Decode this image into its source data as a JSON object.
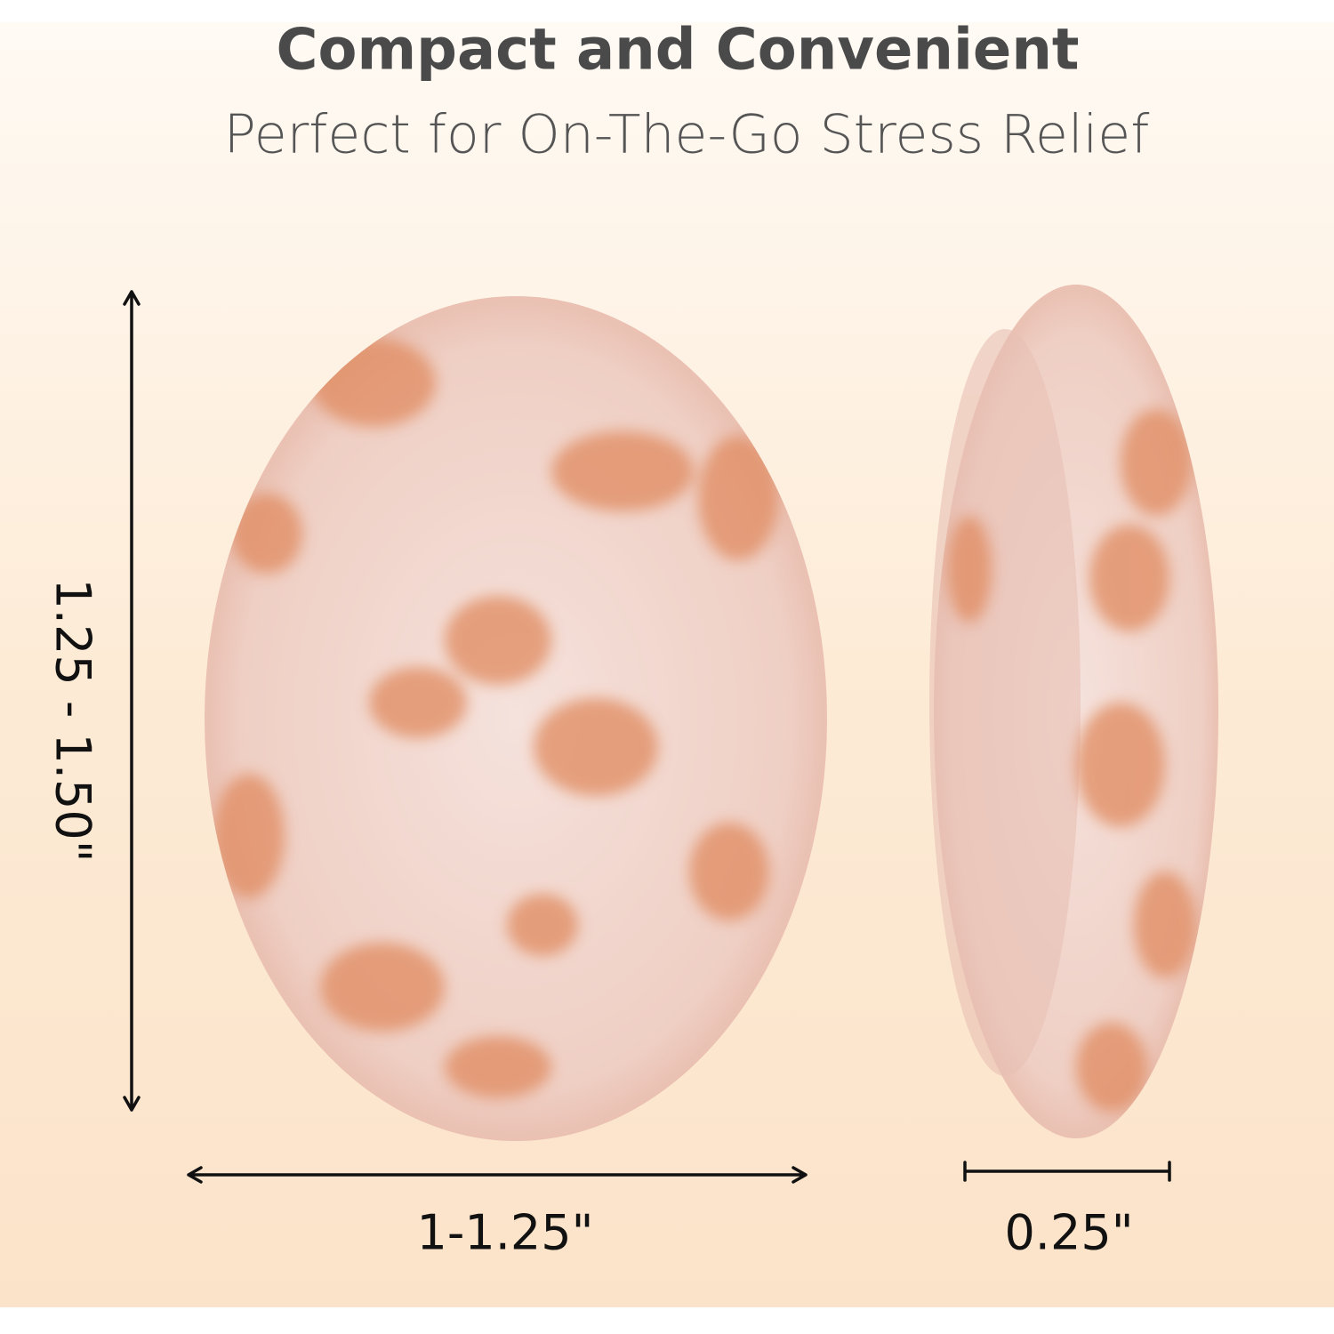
{
  "header": {
    "title": "Compact and Convenient",
    "subtitle": "Perfect for On-The-Go Stress Relief"
  },
  "dimensions": {
    "height": "1.25 - 1.50\"",
    "width": "1-1.25\"",
    "thickness": "0.25\""
  }
}
